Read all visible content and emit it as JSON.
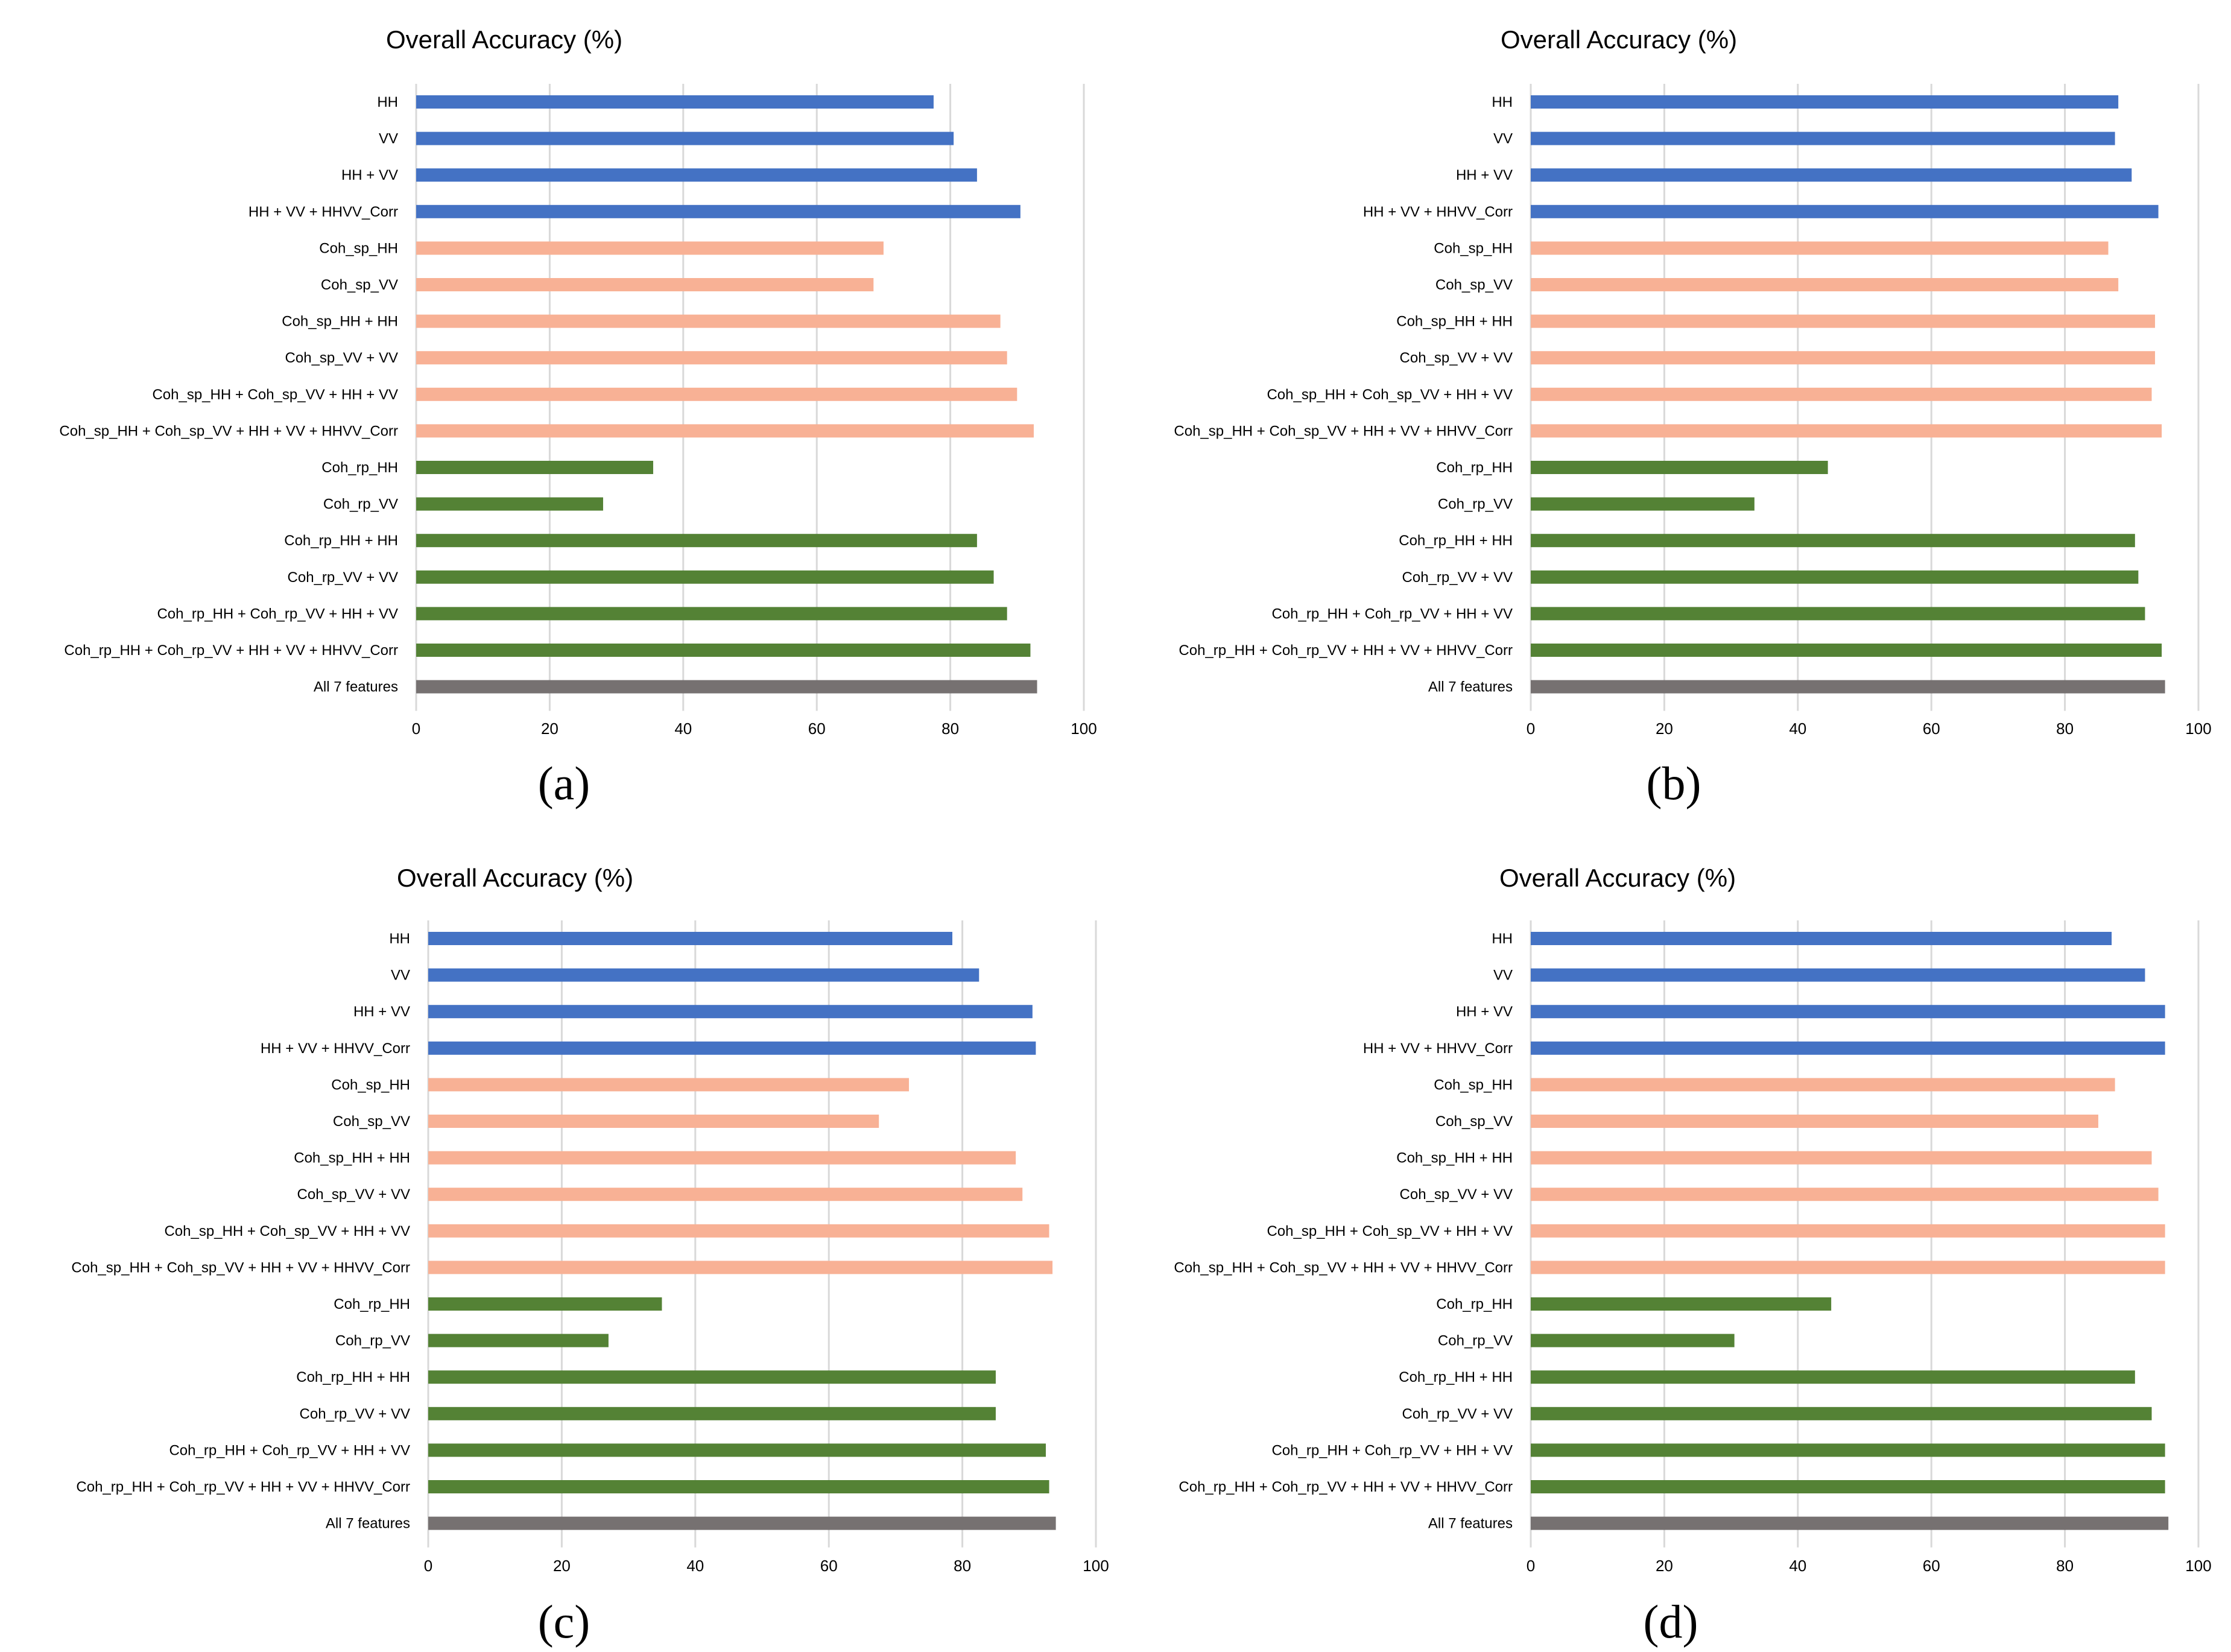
{
  "colors": {
    "polarimetric": "#4472c4",
    "single_pass_coherence": "#f8b195",
    "repeat_pass_coherence": "#548235",
    "all_features": "#767171"
  },
  "chart_data": [
    {
      "type": "bar",
      "orientation": "horizontal",
      "panel_label": "(a)",
      "title": "Overall Accuracy (%)",
      "xlabel": "",
      "ylabel": "",
      "xlim": [
        0,
        100
      ],
      "xticks": [
        "0",
        "20",
        "40",
        "60",
        "80",
        "100"
      ],
      "grid": true,
      "categories": [
        "HH",
        "VV",
        "HH + VV",
        "HH + VV + HHVV_Corr",
        "Coh_sp_HH",
        "Coh_sp_VV",
        "Coh_sp_HH + HH",
        "Coh_sp_VV + VV",
        "Coh_sp_HH + Coh_sp_VV + HH + VV",
        "Coh_sp_HH + Coh_sp_VV + HH + VV + HHVV_Corr",
        "Coh_rp_HH",
        "Coh_rp_VV",
        "Coh_rp_HH + HH",
        "Coh_rp_VV + VV",
        "Coh_rp_HH + Coh_rp_VV + HH + VV",
        "Coh_rp_HH + Coh_rp_VV + HH + VV + HHVV_Corr",
        "All 7 features"
      ],
      "groups": [
        "polarimetric",
        "polarimetric",
        "polarimetric",
        "polarimetric",
        "single_pass_coherence",
        "single_pass_coherence",
        "single_pass_coherence",
        "single_pass_coherence",
        "single_pass_coherence",
        "single_pass_coherence",
        "repeat_pass_coherence",
        "repeat_pass_coherence",
        "repeat_pass_coherence",
        "repeat_pass_coherence",
        "repeat_pass_coherence",
        "repeat_pass_coherence",
        "all_features"
      ],
      "values": [
        77.5,
        80.5,
        84.0,
        90.5,
        70.0,
        68.5,
        87.5,
        88.5,
        90.0,
        92.5,
        35.5,
        28.0,
        84.0,
        86.5,
        88.5,
        92.0,
        93.0
      ]
    },
    {
      "type": "bar",
      "orientation": "horizontal",
      "panel_label": "(b)",
      "title": "Overall Accuracy (%)",
      "xlabel": "",
      "ylabel": "",
      "xlim": [
        0,
        100
      ],
      "xticks": [
        "0",
        "20",
        "40",
        "60",
        "80",
        "100"
      ],
      "grid": true,
      "categories": [
        "HH",
        "VV",
        "HH + VV",
        "HH + VV + HHVV_Corr",
        "Coh_sp_HH",
        "Coh_sp_VV",
        "Coh_sp_HH + HH",
        "Coh_sp_VV + VV",
        "Coh_sp_HH + Coh_sp_VV + HH + VV",
        "Coh_sp_HH + Coh_sp_VV + HH + VV + HHVV_Corr",
        "Coh_rp_HH",
        "Coh_rp_VV",
        "Coh_rp_HH + HH",
        "Coh_rp_VV + VV",
        "Coh_rp_HH + Coh_rp_VV + HH + VV",
        "Coh_rp_HH + Coh_rp_VV + HH + VV + HHVV_Corr",
        "All 7 features"
      ],
      "groups": [
        "polarimetric",
        "polarimetric",
        "polarimetric",
        "polarimetric",
        "single_pass_coherence",
        "single_pass_coherence",
        "single_pass_coherence",
        "single_pass_coherence",
        "single_pass_coherence",
        "single_pass_coherence",
        "repeat_pass_coherence",
        "repeat_pass_coherence",
        "repeat_pass_coherence",
        "repeat_pass_coherence",
        "repeat_pass_coherence",
        "repeat_pass_coherence",
        "all_features"
      ],
      "values": [
        88.0,
        87.5,
        90.0,
        94.0,
        86.5,
        88.0,
        93.5,
        93.5,
        93.0,
        94.5,
        44.5,
        33.5,
        90.5,
        91.0,
        92.0,
        94.5,
        95.0
      ]
    },
    {
      "type": "bar",
      "orientation": "horizontal",
      "panel_label": "(c)",
      "title": "Overall Accuracy (%)",
      "xlabel": "",
      "ylabel": "",
      "xlim": [
        0,
        100
      ],
      "xticks": [
        "0",
        "20",
        "40",
        "60",
        "80",
        "100"
      ],
      "grid": true,
      "categories": [
        "HH",
        "VV",
        "HH + VV",
        "HH + VV + HHVV_Corr",
        "Coh_sp_HH",
        "Coh_sp_VV",
        "Coh_sp_HH + HH",
        "Coh_sp_VV + VV",
        "Coh_sp_HH + Coh_sp_VV + HH + VV",
        "Coh_sp_HH + Coh_sp_VV + HH + VV + HHVV_Corr",
        "Coh_rp_HH",
        "Coh_rp_VV",
        "Coh_rp_HH + HH",
        "Coh_rp_VV + VV",
        "Coh_rp_HH + Coh_rp_VV + HH + VV",
        "Coh_rp_HH + Coh_rp_VV + HH + VV + HHVV_Corr",
        "All 7 features"
      ],
      "groups": [
        "polarimetric",
        "polarimetric",
        "polarimetric",
        "polarimetric",
        "single_pass_coherence",
        "single_pass_coherence",
        "single_pass_coherence",
        "single_pass_coherence",
        "single_pass_coherence",
        "single_pass_coherence",
        "repeat_pass_coherence",
        "repeat_pass_coherence",
        "repeat_pass_coherence",
        "repeat_pass_coherence",
        "repeat_pass_coherence",
        "repeat_pass_coherence",
        "all_features"
      ],
      "values": [
        78.5,
        82.5,
        90.5,
        91.0,
        72.0,
        67.5,
        88.0,
        89.0,
        93.0,
        93.5,
        35.0,
        27.0,
        85.0,
        85.0,
        92.5,
        93.0,
        94.0
      ]
    },
    {
      "type": "bar",
      "orientation": "horizontal",
      "panel_label": "(d)",
      "title": "Overall Accuracy (%)",
      "xlabel": "",
      "ylabel": "",
      "xlim": [
        0,
        100
      ],
      "xticks": [
        "0",
        "20",
        "40",
        "60",
        "80",
        "100"
      ],
      "grid": true,
      "categories": [
        "HH",
        "VV",
        "HH + VV",
        "HH + VV + HHVV_Corr",
        "Coh_sp_HH",
        "Coh_sp_VV",
        "Coh_sp_HH + HH",
        "Coh_sp_VV + VV",
        "Coh_sp_HH + Coh_sp_VV + HH + VV",
        "Coh_sp_HH + Coh_sp_VV + HH + VV + HHVV_Corr",
        "Coh_rp_HH",
        "Coh_rp_VV",
        "Coh_rp_HH + HH",
        "Coh_rp_VV + VV",
        "Coh_rp_HH + Coh_rp_VV + HH + VV",
        "Coh_rp_HH + Coh_rp_VV + HH + VV + HHVV_Corr",
        "All 7 features"
      ],
      "groups": [
        "polarimetric",
        "polarimetric",
        "polarimetric",
        "polarimetric",
        "single_pass_coherence",
        "single_pass_coherence",
        "single_pass_coherence",
        "single_pass_coherence",
        "single_pass_coherence",
        "single_pass_coherence",
        "repeat_pass_coherence",
        "repeat_pass_coherence",
        "repeat_pass_coherence",
        "repeat_pass_coherence",
        "repeat_pass_coherence",
        "repeat_pass_coherence",
        "all_features"
      ],
      "values": [
        87.0,
        92.0,
        95.0,
        95.0,
        87.5,
        85.0,
        93.0,
        94.0,
        95.0,
        95.0,
        45.0,
        30.5,
        90.5,
        93.0,
        95.0,
        95.0,
        95.5
      ]
    }
  ]
}
